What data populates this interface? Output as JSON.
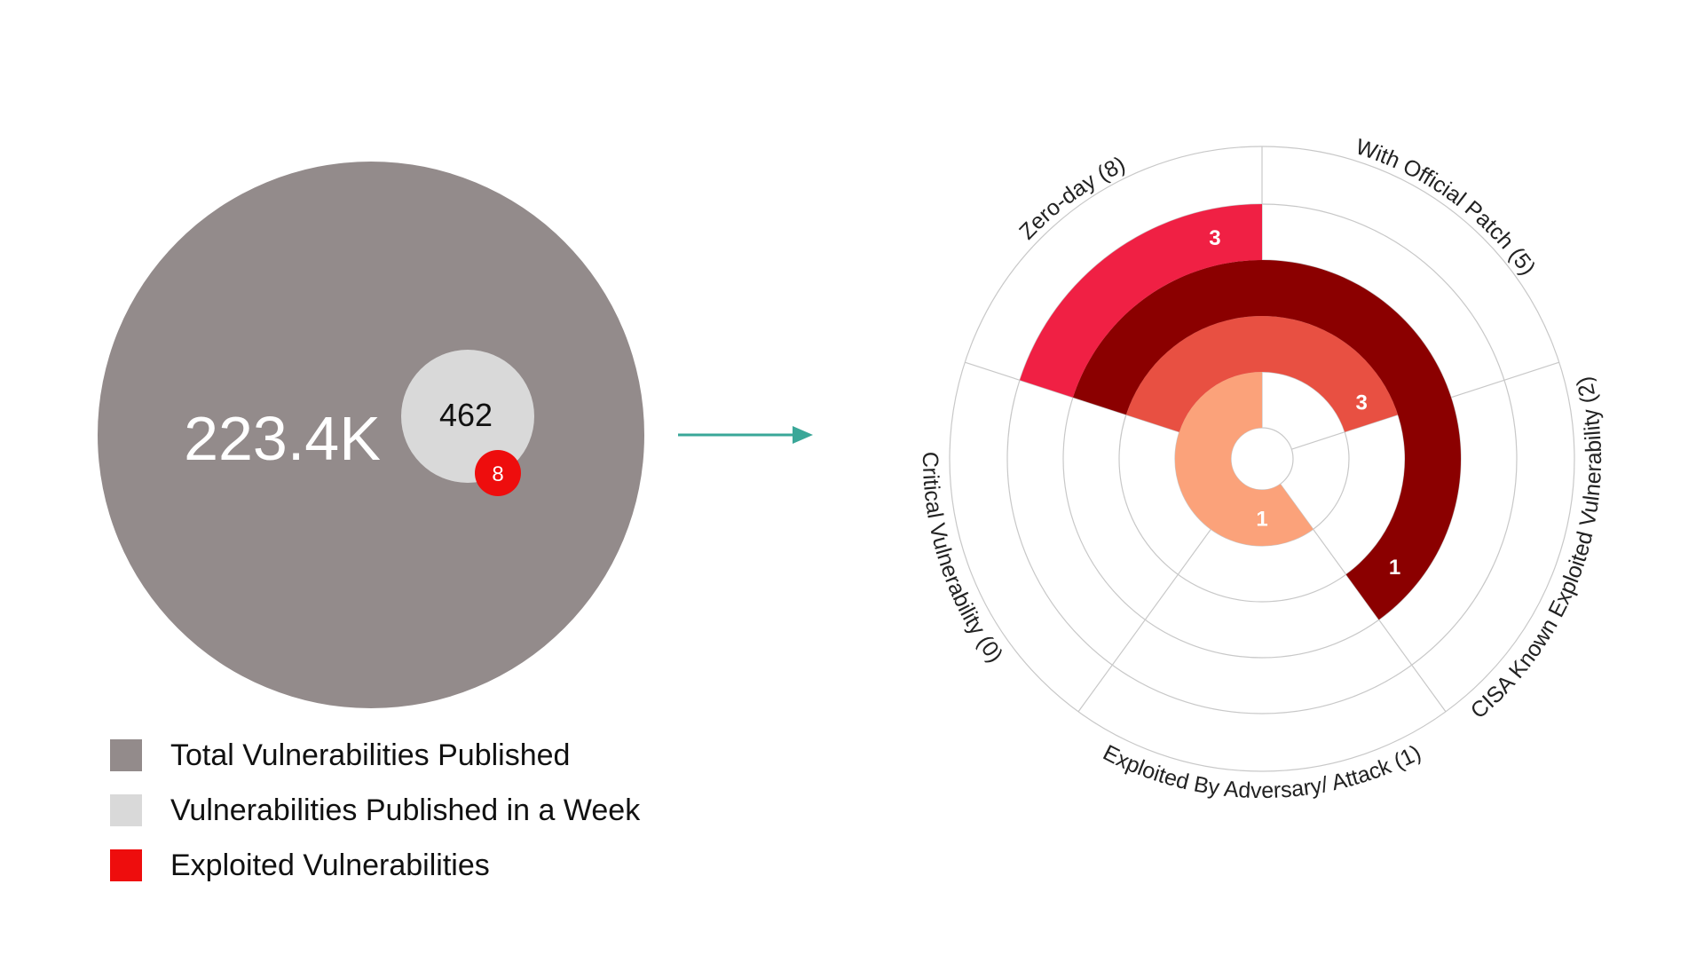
{
  "bubble": {
    "total_label": "223.4K",
    "week_label": "462",
    "exploited_label": "8",
    "colors": {
      "total": "#938b8b",
      "week": "#d9d9d9",
      "exploited": "#ee0d0d"
    }
  },
  "legend": [
    {
      "label": "Total Vulnerabilities Published",
      "color": "#938b8b"
    },
    {
      "label": "Vulnerabilities Published in a Week",
      "color": "#d9d9d9"
    },
    {
      "label": "Exploited Vulnerabilities",
      "color": "#ee0d0d"
    }
  ],
  "arrow": {
    "color": "#3aa798"
  },
  "chart_data": {
    "type": "radial-bar",
    "categories": [
      "With Official Patch (5)",
      "CISA Known Exploited Vulnerability (2)",
      "Exploited By Adversary/ Attack (1)",
      "Critical Vulnerability (0)",
      "Zero-day (8)"
    ],
    "rings": [
      {
        "value": 1,
        "color": "#fba27a",
        "start_category": "Exploited By Adversary/ Attack (1)",
        "end_category": "Zero-day (8)"
      },
      {
        "value": 3,
        "color": "#e85042",
        "start_category": "Zero-day (8)",
        "end_category": "With Official Patch (5)"
      },
      {
        "value": 1,
        "color": "#8b0000",
        "start_category": "Zero-day (8)",
        "end_category": "CISA Known Exploited Vulnerability (2)"
      },
      {
        "value": 3,
        "color": "#f02044",
        "start_category": "Zero-day (8)",
        "end_category": "Zero-day (8)"
      }
    ],
    "grid": true
  }
}
